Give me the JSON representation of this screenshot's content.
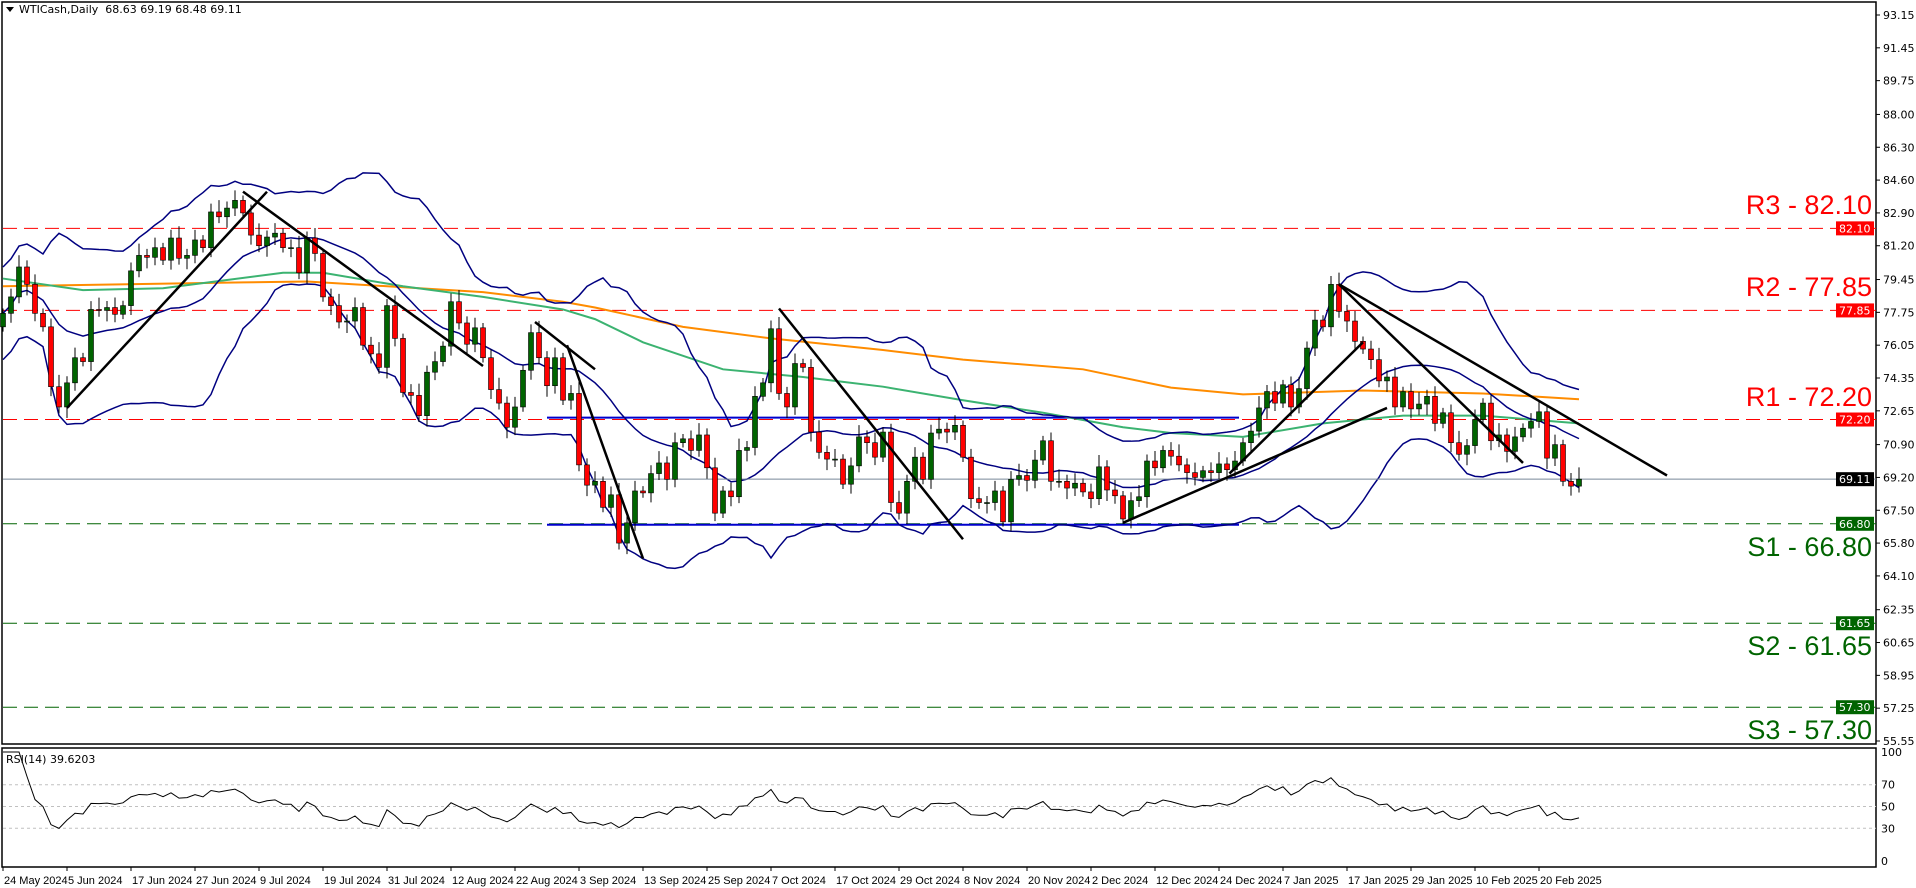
{
  "header": {
    "symbol": "WTICash,Daily",
    "ohlc": "68.63 69.19 68.48 69.11"
  },
  "rsi_panel": {
    "label": "RSI(14) 39.6203",
    "levels": [
      70,
      50,
      30
    ],
    "axis_labels": [
      "100",
      "70",
      "50",
      "30",
      "0"
    ]
  },
  "colors": {
    "bull": "#006400",
    "bear": "#ff0000",
    "wick": "#000000",
    "bollinger": "#000080",
    "ma_slow": "#ff8c00",
    "ma_fast": "#3cb371",
    "rectangle": "#0000cd",
    "trendline": "#000000",
    "price_line": "#778899",
    "resistance": "#ff0000",
    "support": "#006400"
  },
  "chart_data": {
    "type": "candlestick",
    "ylim": [
      55.55,
      93.15
    ],
    "price_ticks": [
      "93.15",
      "91.45",
      "89.75",
      "88.00",
      "86.30",
      "84.60",
      "82.90",
      "81.20",
      "79.45",
      "77.75",
      "76.05",
      "74.35",
      "72.65",
      "70.90",
      "69.20",
      "67.50",
      "65.80",
      "64.10",
      "62.35",
      "60.65",
      "58.95",
      "57.25",
      "55.55"
    ],
    "date_ticks": [
      {
        "label": "24 May 2024",
        "bar": 0
      },
      {
        "label": "5 Jun 2024",
        "bar": 8
      },
      {
        "label": "17 Jun 2024",
        "bar": 16
      },
      {
        "label": "27 Jun 2024",
        "bar": 24
      },
      {
        "label": "9 Jul 2024",
        "bar": 32
      },
      {
        "label": "19 Jul 2024",
        "bar": 40
      },
      {
        "label": "31 Jul 2024",
        "bar": 48
      },
      {
        "label": "12 Aug 2024",
        "bar": 56
      },
      {
        "label": "22 Aug 2024",
        "bar": 64
      },
      {
        "label": "3 Sep 2024",
        "bar": 72
      },
      {
        "label": "13 Sep 2024",
        "bar": 80
      },
      {
        "label": "25 Sep 2024",
        "bar": 88
      },
      {
        "label": "7 Oct 2024",
        "bar": 96
      },
      {
        "label": "17 Oct 2024",
        "bar": 104
      },
      {
        "label": "29 Oct 2024",
        "bar": 112
      },
      {
        "label": "8 Nov 2024",
        "bar": 120
      },
      {
        "label": "20 Nov 2024",
        "bar": 128
      },
      {
        "label": "2 Dec 2024",
        "bar": 136
      },
      {
        "label": "12 Dec 2024",
        "bar": 144
      },
      {
        "label": "24 Dec 2024",
        "bar": 152
      },
      {
        "label": "7 Jan 2025",
        "bar": 160
      },
      {
        "label": "17 Jan 2025",
        "bar": 168
      },
      {
        "label": "29 Jan 2025",
        "bar": 176
      },
      {
        "label": "10 Feb 2025",
        "bar": 184
      },
      {
        "label": "20 Feb 2025",
        "bar": 192
      }
    ],
    "first_open": 77.0,
    "closes": [
      77.7,
      78.55,
      80.1,
      79.2,
      77.7,
      77.0,
      73.9,
      72.85,
      74.1,
      75.4,
      75.2,
      77.9,
      77.85,
      78.0,
      77.65,
      78.1,
      79.9,
      80.7,
      80.6,
      81.1,
      80.45,
      81.6,
      80.55,
      80.7,
      81.5,
      81.1,
      82.95,
      82.7,
      83.15,
      83.55,
      82.9,
      81.75,
      81.2,
      81.65,
      81.85,
      81.1,
      81.1,
      79.8,
      81.6,
      80.8,
      78.55,
      78.1,
      77.25,
      77.3,
      78.0,
      76.05,
      75.6,
      74.9,
      78.1,
      76.4,
      73.6,
      73.45,
      72.4,
      74.65,
      75.2,
      76.0,
      78.3,
      77.2,
      76.1,
      76.95,
      75.4,
      73.75,
      73.05,
      71.8,
      72.85,
      74.75,
      76.7,
      75.4,
      73.95,
      75.4,
      73.2,
      73.55,
      69.85,
      68.8,
      69.0,
      67.65,
      68.3,
      65.8,
      66.85,
      68.5,
      68.4,
      69.4,
      69.95,
      69.1,
      71.0,
      71.2,
      70.6,
      71.4,
      69.7,
      67.35,
      68.5,
      68.2,
      70.6,
      70.75,
      73.4,
      74.1,
      76.9,
      73.55,
      72.85,
      75.1,
      74.9,
      71.55,
      70.5,
      70.15,
      70.15,
      68.85,
      69.8,
      71.3,
      71.0,
      70.25,
      71.55,
      67.9,
      67.35,
      69.0,
      70.25,
      69.1,
      71.5,
      71.7,
      71.55,
      71.9,
      70.25,
      68.1,
      67.9,
      67.9,
      68.5,
      66.9,
      69.1,
      69.3,
      69.05,
      70.1,
      71.1,
      69.0,
      69.0,
      68.65,
      68.9,
      68.45,
      68.1,
      69.75,
      68.55,
      68.25,
      67.05,
      68.0,
      68.2,
      70.05,
      69.7,
      70.6,
      70.3,
      69.85,
      69.45,
      69.2,
      69.55,
      69.45,
      69.9,
      69.6,
      70.05,
      71.0,
      71.6,
      72.8,
      73.65,
      73.05,
      74.0,
      72.85,
      73.8,
      75.9,
      77.35,
      77.0,
      79.2,
      77.8,
      77.3,
      76.25,
      75.85,
      75.3,
      74.2,
      74.4,
      72.85,
      73.65,
      72.75,
      73.0,
      73.4,
      72.0,
      72.55,
      71.0,
      70.4,
      70.85,
      72.2,
      73.05,
      71.1,
      71.4,
      70.55,
      71.3,
      71.75,
      72.1,
      72.6,
      70.2,
      70.9,
      69.0,
      68.75,
      69.11
    ],
    "last_price": 69.11,
    "levels": [
      {
        "label": "R3 - 82.10",
        "value": 82.1,
        "type": "resistance"
      },
      {
        "label": "R2 - 77.85",
        "value": 77.85,
        "type": "resistance"
      },
      {
        "label": "R1 - 72.20",
        "value": 72.2,
        "type": "resistance"
      },
      {
        "label": "S1 - 66.80",
        "value": 66.8,
        "type": "support"
      },
      {
        "label": "S2 - 61.65",
        "value": 61.65,
        "type": "support"
      },
      {
        "label": "S3 - 57.30",
        "value": 57.3,
        "type": "support"
      }
    ],
    "moving_averages": [
      {
        "color": "#ff8c00",
        "points": [
          [
            0,
            79.1
          ],
          [
            30,
            79.3
          ],
          [
            38,
            79.35
          ],
          [
            60,
            78.8
          ],
          [
            70,
            78.3
          ],
          [
            74,
            78.0
          ],
          [
            85,
            77.0
          ],
          [
            96,
            76.4
          ],
          [
            110,
            75.8
          ],
          [
            120,
            75.3
          ],
          [
            135,
            74.8
          ],
          [
            146,
            73.85
          ],
          [
            155,
            73.5
          ],
          [
            170,
            73.7
          ],
          [
            185,
            73.55
          ],
          [
            197,
            73.25
          ]
        ]
      },
      {
        "color": "#3cb371",
        "points": [
          [
            0,
            79.5
          ],
          [
            10,
            78.9
          ],
          [
            20,
            79.0
          ],
          [
            35,
            79.8
          ],
          [
            40,
            79.8
          ],
          [
            50,
            79.1
          ],
          [
            60,
            78.55
          ],
          [
            70,
            77.9
          ],
          [
            74,
            77.4
          ],
          [
            80,
            76.2
          ],
          [
            90,
            74.8
          ],
          [
            100,
            74.4
          ],
          [
            110,
            73.9
          ],
          [
            120,
            73.2
          ],
          [
            130,
            72.55
          ],
          [
            140,
            71.8
          ],
          [
            146,
            71.5
          ],
          [
            155,
            71.3
          ],
          [
            165,
            72.0
          ],
          [
            175,
            72.4
          ],
          [
            185,
            72.4
          ],
          [
            197,
            72.0
          ]
        ]
      }
    ],
    "bollinger": {
      "period": 20,
      "deviations": 2
    },
    "rectangle": {
      "top": 72.3,
      "bottom": 66.75,
      "from_bar": 68,
      "to_bar": 154.5
    },
    "trendlines": [
      [
        [
          8,
          72.8
        ],
        [
          33,
          84.0
        ]
      ],
      [
        [
          30,
          84.0
        ],
        [
          60,
          74.97
        ]
      ],
      [
        [
          66.5,
          77.25
        ],
        [
          74,
          74.8
        ]
      ],
      [
        [
          70.5,
          76.05
        ],
        [
          80,
          65.0
        ]
      ],
      [
        [
          97,
          77.95
        ],
        [
          120,
          66.0
        ]
      ],
      [
        [
          140,
          66.85
        ],
        [
          173,
          72.8
        ]
      ],
      [
        [
          153.3,
          69.4
        ],
        [
          170,
          76.2
        ]
      ],
      [
        [
          167,
          79.2
        ],
        [
          190,
          69.95
        ]
      ],
      [
        [
          167,
          79.2
        ],
        [
          208,
          69.3
        ]
      ]
    ],
    "rsi": {
      "period": 14,
      "ylim": [
        0,
        100
      ]
    }
  }
}
